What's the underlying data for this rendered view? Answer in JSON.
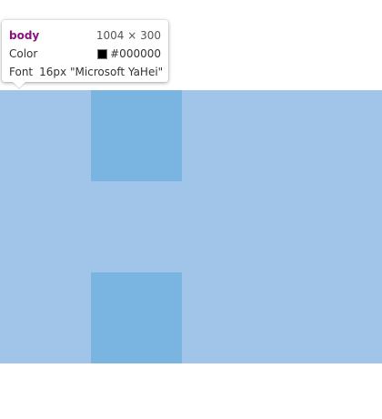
{
  "inspector_tooltip": {
    "tag": "body",
    "dimensions": "1004 × 300",
    "color_label": "Color",
    "color_value": "#000000",
    "font_label": "Font",
    "font_value": "16px \"Microsoft YaHei\""
  },
  "colors": {
    "highlight": "#a1c5e8",
    "block": "#7ab5e2",
    "swatch": "#000000"
  }
}
